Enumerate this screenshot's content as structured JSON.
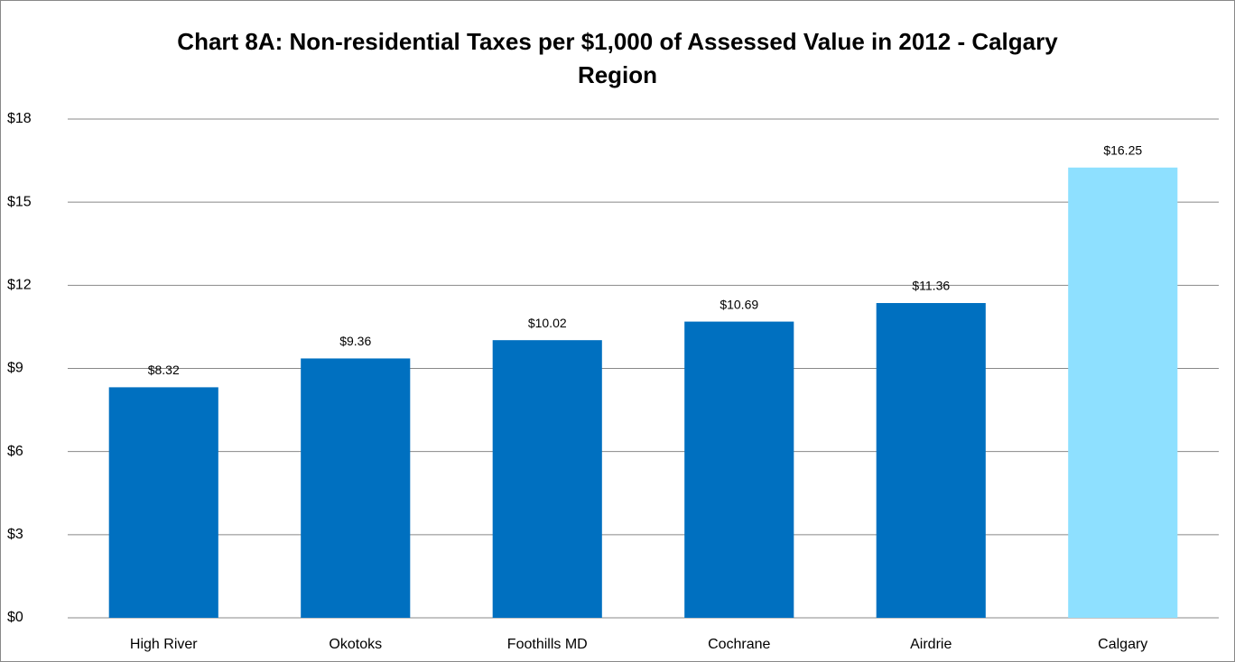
{
  "chart_data": {
    "type": "bar",
    "title": "Chart 8A: Non-residential Taxes per $1,000 of Assessed Value in 2012 - Calgary Region",
    "categories": [
      "High River",
      "Okotoks",
      "Foothills MD",
      "Cochrane",
      "Airdrie",
      "Calgary"
    ],
    "values": [
      8.32,
      9.36,
      10.02,
      10.69,
      11.36,
      16.25
    ],
    "value_labels": [
      "$8.32",
      "$9.36",
      "$10.02",
      "$10.69",
      "$11.36",
      "$16.25"
    ],
    "colors": [
      "#0070c0",
      "#0070c0",
      "#0070c0",
      "#0070c0",
      "#0070c0",
      "#8ee0ff"
    ],
    "ylim": [
      0,
      18
    ],
    "yticks": [
      {
        "value": 0,
        "label": "$0"
      },
      {
        "value": 3,
        "label": "$3"
      },
      {
        "value": 6,
        "label": "$6"
      },
      {
        "value": 9,
        "label": "$9"
      },
      {
        "value": 12,
        "label": "$12"
      },
      {
        "value": 15,
        "label": "$15"
      },
      {
        "value": 18,
        "label": "$18"
      }
    ],
    "grid": true
  }
}
